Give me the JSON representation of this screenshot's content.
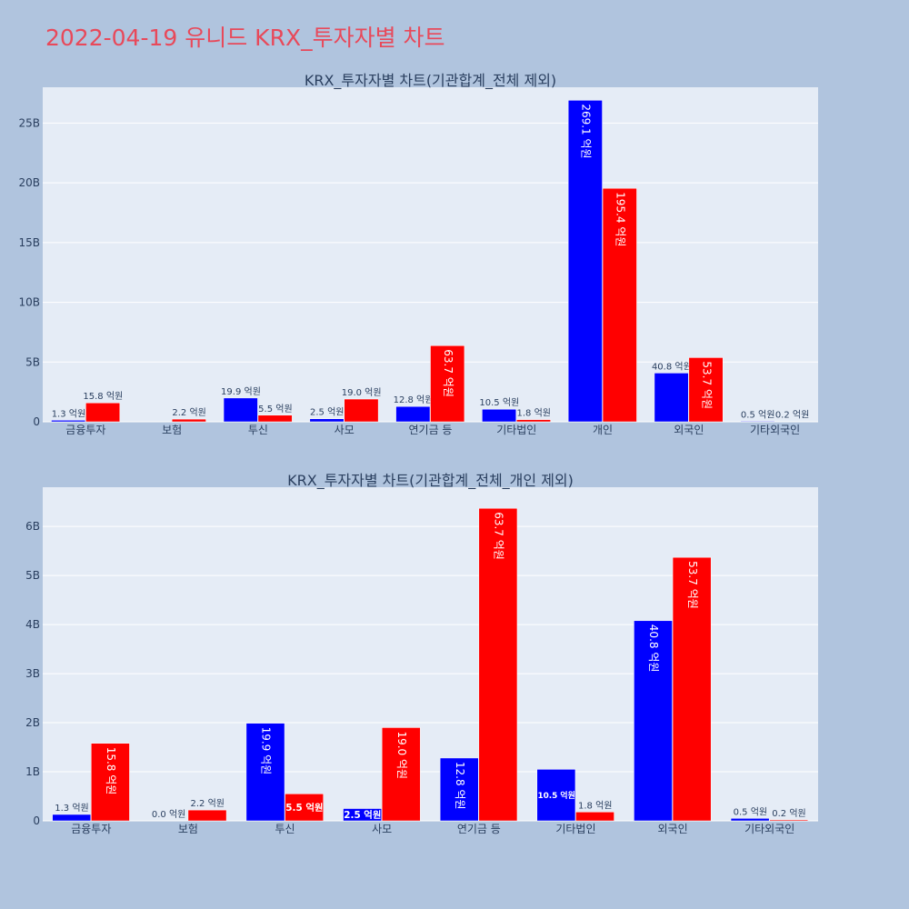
{
  "title": "2022-04-19 유니드 KRX_투자자별 차트",
  "colors": {
    "buy": "#0000ff",
    "sell": "#ff0000",
    "plot_bg": "#e5ecf6",
    "page_bg": "#b0c4de",
    "title": "#e8495a"
  },
  "chart_data": [
    {
      "type": "bar",
      "title": "KRX_투자자별 차트(기관합계_전체 제외)",
      "categories": [
        "금융투자",
        "보험",
        "투신",
        "사모",
        "연기금 등",
        "기타법인",
        "개인",
        "외국인",
        "기타외국인"
      ],
      "ylim": [
        0,
        28000000000
      ],
      "yticks": [
        0,
        5000000000,
        10000000000,
        15000000000,
        20000000000,
        25000000000
      ],
      "ytick_labels": [
        "0",
        "5B",
        "10B",
        "15B",
        "20B",
        "25B"
      ],
      "grid": true,
      "series": [
        {
          "values": [
            130000000,
            0,
            1990000000,
            250000000,
            1280000000,
            1050000000,
            26910000000,
            4080000000,
            50000000
          ],
          "labels": [
            "1.3 억원",
            "",
            "19.9 억원",
            "2.5 억원",
            "12.8 억원",
            "10.5 억원",
            "269.1 억원",
            "40.8 억원",
            "0.5 억원"
          ]
        },
        {
          "values": [
            1580000000,
            220000000,
            550000000,
            1900000000,
            6370000000,
            180000000,
            19540000000,
            5370000000,
            20000000
          ],
          "labels": [
            "15.8 억원",
            "2.2 억원",
            "5.5 억원",
            "19.0 억원",
            "63.7 억원",
            "1.8 억원",
            "195.4 억원",
            "53.7 억원",
            "0.2 억원"
          ]
        }
      ]
    },
    {
      "type": "bar",
      "title": "KRX_투자자별 차트(기관합계_전체_개인 제외)",
      "categories": [
        "금융투자",
        "보험",
        "투신",
        "사모",
        "연기금 등",
        "기타법인",
        "외국인",
        "기타외국인"
      ],
      "ylim": [
        0,
        6800000000
      ],
      "yticks": [
        0,
        1000000000,
        2000000000,
        3000000000,
        4000000000,
        5000000000,
        6000000000
      ],
      "ytick_labels": [
        "0",
        "1B",
        "2B",
        "3B",
        "4B",
        "5B",
        "6B"
      ],
      "grid": true,
      "series": [
        {
          "values": [
            130000000,
            0,
            1990000000,
            250000000,
            1280000000,
            1050000000,
            4080000000,
            50000000
          ],
          "labels": [
            "1.3 억원",
            "0.0 억원",
            "19.9 억원",
            "2.5 억원",
            "12.8 억원",
            "10.5 억원",
            "40.8 억원",
            "0.5 억원"
          ]
        },
        {
          "values": [
            1580000000,
            220000000,
            550000000,
            1900000000,
            6370000000,
            180000000,
            5370000000,
            20000000
          ],
          "labels": [
            "15.8 억원",
            "2.2 억원",
            "5.5 억원",
            "19.0 억원",
            "63.7 억원",
            "1.8 억원",
            "53.7 억원",
            "0.2 억원"
          ]
        }
      ]
    }
  ]
}
